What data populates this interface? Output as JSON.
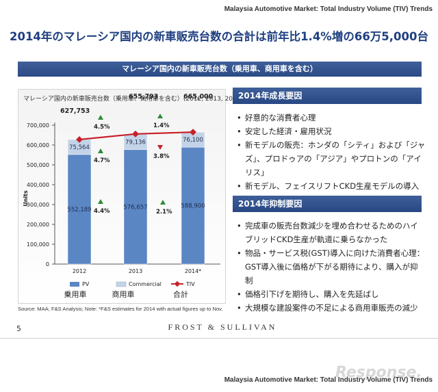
{
  "header": {
    "text": "Malaysia Automotive Market: Total Industry Volume (TIV) Trends"
  },
  "title": "2014年のマレーシア国内の新車販売台数の合計は前年比1.4%増の66万5,000台",
  "banner": "マレーシア国内の新車販売台数（乗用車、商用車を含む）",
  "chart_title": "マレーシア国内の新車販売台数（乗用車、商用車を含む）(2012, 2013, 2014*)",
  "colors": {
    "pv": "#5b86c4",
    "commercial": "#c4d4e8",
    "tiv": "#c8202a",
    "up": "#2e8b3a",
    "down": "#c8202a",
    "navy": "#2b4a86"
  },
  "chart_data": {
    "type": "bar",
    "categories": [
      "2012",
      "2013",
      "2014*"
    ],
    "series": [
      {
        "name": "PV",
        "values": [
          552189,
          576657,
          588900
        ]
      },
      {
        "name": "Commercial",
        "values": [
          75564,
          79136,
          76100
        ]
      },
      {
        "name": "TIV",
        "values": [
          627753,
          655793,
          665000
        ]
      }
    ],
    "value_labels": {
      "pv": [
        "552,189",
        "576,657",
        "588,900"
      ],
      "commercial": [
        "75,564",
        "79,136",
        "76,100"
      ],
      "tiv": [
        "627,753",
        "655,793",
        "665,000"
      ]
    },
    "growth": {
      "tiv": [
        {
          "label": "4.5%",
          "dir": "up"
        },
        {
          "label": "1.4%",
          "dir": "up"
        }
      ],
      "commercial": [
        {
          "label": "4.7%",
          "dir": "up"
        },
        {
          "label": "3.8%",
          "dir": "down"
        }
      ],
      "pv": [
        {
          "label": "4.4%",
          "dir": "up"
        },
        {
          "label": "2.1%",
          "dir": "up"
        }
      ]
    },
    "ylabel": "Units",
    "ylim": [
      0,
      700000
    ],
    "yticks": [
      0,
      100000,
      200000,
      300000,
      400000,
      500000,
      600000,
      700000
    ],
    "ytick_labels": [
      "0",
      "100,000",
      "200,000",
      "300,000",
      "400,000",
      "500,000",
      "600,000",
      "700,000"
    ],
    "legend": [
      "PV",
      "Commercial",
      "TIV"
    ],
    "legend_jp": [
      "乗用車",
      "商用車",
      "合計"
    ],
    "legend_position": "bottom",
    "grid": false
  },
  "growth_heading": "2014年成長要因",
  "growth_items": [
    "好意的な消費者心理",
    "安定した経済・雇用状況",
    "新モデルの販売：ホンダの「シティ」および「ジャズ」、プロドゥアの「アジア」やプロトンの「アイリス」",
    "新モデル、フェイスリフトCKD生産モデルの導入"
  ],
  "restrain_heading": "2014年抑制要因",
  "restrain_items": [
    "完成車の販売台数減少を埋め合わせるためのハイブリッドCKD生産が軌道に乗らなかった",
    "物品・サービス税(GST)導入に向けた消費者心理：GST導入後に価格が下がる期待により、購入が抑制",
    "価格引下げを期待し、購入を先延ばし",
    "大規模な建設案件の不足による商用車販売の減少"
  ],
  "source": "Source: MAA; F&S Analysis; Note: *F&S estimates for 2014 with actual figures up to Nov.",
  "page_number": "5",
  "brand": "FROST & SULLIVAN",
  "footer": {
    "text": "Malaysia Automotive Market: Total Industry Volume (TIV) Trends"
  },
  "watermark": "Response."
}
